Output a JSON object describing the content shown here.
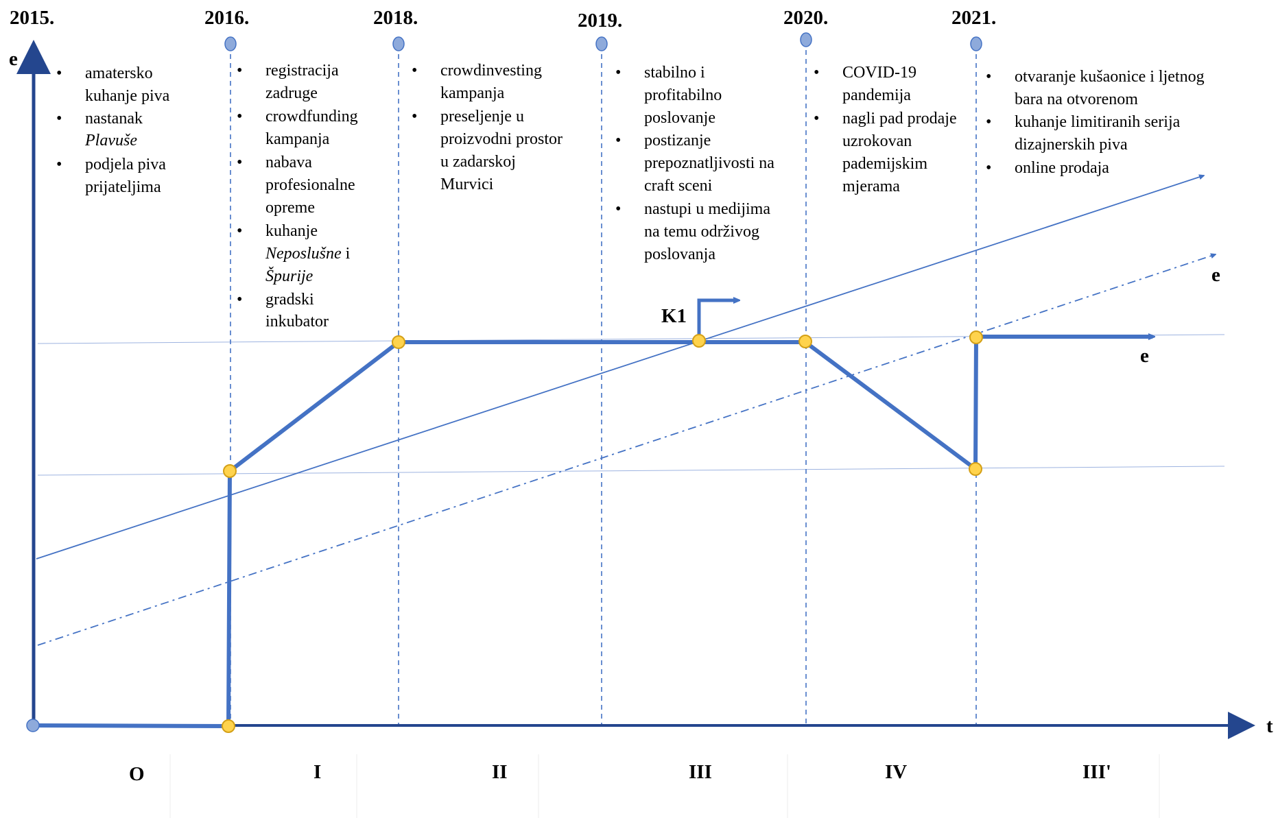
{
  "colors": {
    "axis": "#24468e",
    "line": "#4472c4",
    "dot_blue": "#8eaadb",
    "dot_yellow": "#ffd34d",
    "dot_yellow_stroke": "#d4a017",
    "guide": "#7f9fd9"
  },
  "axes": {
    "y_label": "e",
    "x_label": "t"
  },
  "years": {
    "y2015": "2015.",
    "y2016": "2016.",
    "y2018": "2018.",
    "y2019": "2019.",
    "y2020": "2020.",
    "y2021": "2021."
  },
  "phases": {
    "p0": "O",
    "p1": "I",
    "p2": "II",
    "p3": "III",
    "p4": "IV",
    "p5": "III'"
  },
  "labels": {
    "e_dashdot": "e",
    "e_arrow": "e",
    "k1": "K1"
  },
  "notes": {
    "c2015": {
      "b1_l1": "amatersko",
      "b1_l2": "kuhanje piva",
      "b2_l1": "nastanak",
      "b2_l2": "Plavuše",
      "b3_l1": "podjela piva",
      "b3_l2": "prijateljima"
    },
    "c2016": {
      "b1_l1": "registracija",
      "b1_l2": "zadruge",
      "b2_l1": "crowdfunding",
      "b2_l2": "kampanja",
      "b3_l1": "nabava",
      "b3_l2": "profesionalne",
      "b3_l3": "opreme",
      "b4_l1": "kuhanje",
      "b4_l2_it": "Neposlušne",
      "b4_l2_rest": " i",
      "b4_l3": "Špurije",
      "b5_l1": "gradski",
      "b5_l2": "inkubator"
    },
    "c2018": {
      "b1_l1": "crowdinvesting",
      "b1_l2": "kampanja",
      "b2_l1": "preseljenje u",
      "b2_l2": "proizvodni prostor",
      "b2_l3": "u zadarskoj",
      "b2_l4": "Murvici"
    },
    "c2019": {
      "b1_l1": "stabilno i",
      "b1_l2": "profitabilno",
      "b1_l3": "poslovanje",
      "b2_l1": "postizanje",
      "b2_l2": "prepoznatljivosti na",
      "b2_l3": "craft sceni",
      "b3_l1": "nastupi u medijima",
      "b3_l2": "na temu održivog",
      "b3_l3": "poslovanja"
    },
    "c2020": {
      "b1_l1": "COVID-19",
      "b1_l2": "pandemija",
      "b2_l1": "nagli pad prodaje",
      "b2_l2": "uzrokovan",
      "b2_l3": "pademijskim",
      "b2_l4": "mjerama"
    },
    "c2021": {
      "b1_l1": "otvaranje kušaonice i ljetnog",
      "b1_l2": "bara na otvorenom",
      "b2_l1": "kuhanje limitiranih serija",
      "b2_l2": "dizajnerskih piva",
      "b3_l1": "online prodaja"
    }
  }
}
